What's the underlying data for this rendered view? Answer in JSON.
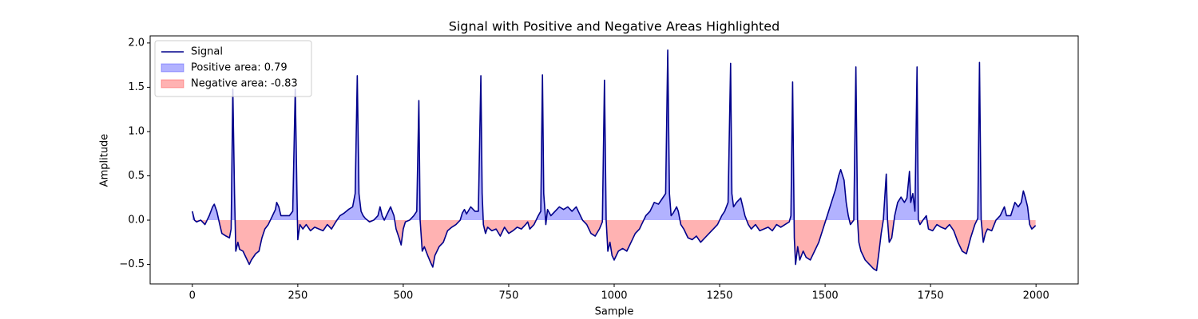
{
  "chart_data": {
    "type": "line",
    "title": "Signal with Positive and Negative Areas Highlighted",
    "x_label": "Sample",
    "y_label": "Amplitude",
    "xlim": [
      -100,
      2100
    ],
    "ylim": [
      -0.72,
      2.08
    ],
    "xticks": [
      0,
      250,
      500,
      750,
      1000,
      1250,
      1500,
      1750,
      2000
    ],
    "yticks": [
      {
        "value": -0.5,
        "label": "−0.5"
      },
      {
        "value": 0,
        "label": "0.0"
      },
      {
        "value": 0.5,
        "label": "0.5"
      },
      {
        "value": 1,
        "label": "1.0"
      },
      {
        "value": 1.5,
        "label": "1.5"
      },
      {
        "value": 2,
        "label": "2.0"
      }
    ],
    "legend": "upper left",
    "x": [
      0,
      5,
      10,
      20,
      30,
      40,
      48,
      52,
      58,
      65,
      70,
      80,
      88,
      92,
      96,
      100,
      103,
      108,
      112,
      120,
      130,
      135,
      140,
      150,
      158,
      165,
      172,
      180,
      190,
      197,
      200,
      205,
      210,
      220,
      230,
      238,
      244,
      248,
      250,
      255,
      262,
      270,
      280,
      290,
      300,
      310,
      320,
      330,
      340,
      350,
      360,
      370,
      380,
      386,
      391,
      395,
      400,
      405,
      410,
      420,
      430,
      440,
      445,
      450,
      455,
      460,
      470,
      478,
      483,
      490,
      495,
      500,
      505,
      515,
      525,
      532,
      537,
      540,
      545,
      550,
      558,
      565,
      570,
      575,
      585,
      595,
      605,
      615,
      625,
      635,
      640,
      645,
      650,
      660,
      670,
      678,
      684,
      687,
      690,
      695,
      700,
      710,
      720,
      730,
      740,
      750,
      760,
      770,
      780,
      790,
      795,
      800,
      810,
      820,
      826,
      830,
      833,
      836,
      838,
      842,
      850,
      860,
      870,
      880,
      890,
      900,
      910,
      915,
      925,
      935,
      945,
      955,
      965,
      972,
      977,
      981,
      985,
      990,
      995,
      1000,
      1010,
      1020,
      1030,
      1040,
      1050,
      1060,
      1065,
      1075,
      1085,
      1095,
      1105,
      1115,
      1122,
      1127,
      1131,
      1135,
      1140,
      1148,
      1152,
      1158,
      1165,
      1175,
      1185,
      1195,
      1205,
      1215,
      1225,
      1235,
      1245,
      1255,
      1262,
      1270,
      1276,
      1279,
      1283,
      1290,
      1300,
      1305,
      1310,
      1318,
      1325,
      1335,
      1345,
      1355,
      1365,
      1375,
      1385,
      1395,
      1405,
      1415,
      1419,
      1423,
      1427,
      1430,
      1435,
      1440,
      1448,
      1455,
      1465,
      1475,
      1485,
      1495,
      1505,
      1515,
      1525,
      1532,
      1537,
      1545,
      1550,
      1555,
      1560,
      1568,
      1573,
      1577,
      1580,
      1585,
      1595,
      1605,
      1615,
      1622,
      1628,
      1633,
      1638,
      1645,
      1648,
      1652,
      1658,
      1665,
      1672,
      1680,
      1688,
      1694,
      1700,
      1703,
      1708,
      1713,
      1718,
      1721,
      1725,
      1732,
      1740,
      1745,
      1755,
      1765,
      1775,
      1785,
      1795,
      1805,
      1815,
      1825,
      1835,
      1845,
      1855,
      1862,
      1866,
      1870,
      1875,
      1880,
      1885,
      1895,
      1905,
      1915,
      1925,
      1930,
      1940,
      1950,
      1958,
      1965,
      1970,
      1975,
      1980,
      1985,
      1990,
      1995,
      1999
    ],
    "series": [
      {
        "name": "Signal",
        "color": "#00008b",
        "values": [
          0.1,
          0,
          -0.02,
          0,
          -0.05,
          0.05,
          0.15,
          0.18,
          0.1,
          -0.05,
          -0.15,
          -0.18,
          -0.2,
          -0.1,
          1.48,
          0.3,
          -0.35,
          -0.25,
          -0.33,
          -0.35,
          -0.45,
          -0.5,
          -0.45,
          -0.38,
          -0.35,
          -0.2,
          -0.1,
          -0.05,
          0.05,
          0.12,
          0.2,
          0.15,
          0.05,
          0.05,
          0.05,
          0.1,
          1.48,
          0.3,
          -0.22,
          -0.05,
          -0.1,
          -0.05,
          -0.12,
          -0.08,
          -0.1,
          -0.12,
          -0.05,
          -0.1,
          -0.02,
          0.05,
          0.08,
          0.12,
          0.15,
          0.3,
          1.63,
          0.3,
          0.1,
          0.05,
          0.02,
          -0.02,
          0,
          0.05,
          0.15,
          0.05,
          0,
          0.05,
          0.15,
          0.05,
          -0.1,
          -0.2,
          -0.28,
          -0.1,
          -0.02,
          0,
          0.05,
          0.1,
          1.35,
          0,
          -0.35,
          -0.3,
          -0.4,
          -0.48,
          -0.53,
          -0.4,
          -0.3,
          -0.25,
          -0.12,
          -0.08,
          -0.05,
          0,
          0.08,
          0.12,
          0.07,
          0.15,
          0.1,
          0.1,
          1.63,
          0.3,
          -0.05,
          -0.15,
          -0.08,
          -0.12,
          -0.1,
          -0.18,
          -0.08,
          -0.15,
          -0.12,
          -0.08,
          -0.1,
          -0.05,
          -0.02,
          -0.1,
          -0.05,
          0.05,
          0.1,
          1.64,
          0.3,
          0.1,
          -0.05,
          0.12,
          0.05,
          0.1,
          0.15,
          0.12,
          0.15,
          0.1,
          0.15,
          0.1,
          0,
          -0.05,
          -0.15,
          -0.18,
          -0.1,
          -0.02,
          1.58,
          0,
          -0.35,
          -0.25,
          -0.4,
          -0.45,
          -0.35,
          -0.32,
          -0.35,
          -0.25,
          -0.15,
          -0.1,
          -0.05,
          0.05,
          0.1,
          0.2,
          0.18,
          0.25,
          0.3,
          1.92,
          0.3,
          0.05,
          0.08,
          0.15,
          0.1,
          -0.05,
          -0.1,
          -0.2,
          -0.22,
          -0.18,
          -0.25,
          -0.2,
          -0.15,
          -0.1,
          -0.05,
          0.05,
          0.1,
          0.2,
          1.77,
          0.3,
          0.15,
          0.2,
          0.25,
          0.15,
          0.05,
          -0.05,
          -0.1,
          -0.05,
          -0.12,
          -0.1,
          -0.08,
          -0.12,
          -0.05,
          -0.08,
          -0.05,
          -0.02,
          0.05,
          1.56,
          -0.2,
          -0.5,
          -0.3,
          -0.45,
          -0.35,
          -0.42,
          -0.45,
          -0.35,
          -0.25,
          -0.1,
          0.05,
          0.2,
          0.35,
          0.5,
          0.57,
          0.45,
          0.2,
          0.05,
          -0.05,
          0,
          1.73,
          0,
          -0.25,
          -0.35,
          -0.45,
          -0.5,
          -0.55,
          -0.57,
          -0.35,
          -0.15,
          0,
          0.52,
          0,
          -0.25,
          -0.2,
          0.05,
          0.2,
          0.26,
          0.2,
          0.25,
          0.55,
          0.2,
          0.3,
          0.1,
          1.73,
          0,
          -0.05,
          0,
          0.05,
          -0.1,
          -0.12,
          -0.05,
          -0.08,
          -0.1,
          -0.05,
          -0.12,
          -0.25,
          -0.35,
          -0.38,
          -0.2,
          -0.05,
          0.02,
          1.78,
          0,
          -0.25,
          -0.15,
          -0.1,
          -0.12,
          0,
          0.05,
          0.15,
          0.05,
          0.05,
          0.2,
          0.15,
          0.2,
          0.33,
          0.25,
          0.15,
          -0.05,
          -0.1,
          -0.08,
          -0.06
        ]
      }
    ],
    "fills": [
      {
        "name": "Positive area: 0.79",
        "color": "#0000ff",
        "opacity": 0.3,
        "side": "positive"
      },
      {
        "name": "Negative area: -0.83",
        "color": "#ff0000",
        "opacity": 0.3,
        "side": "negative"
      }
    ]
  }
}
